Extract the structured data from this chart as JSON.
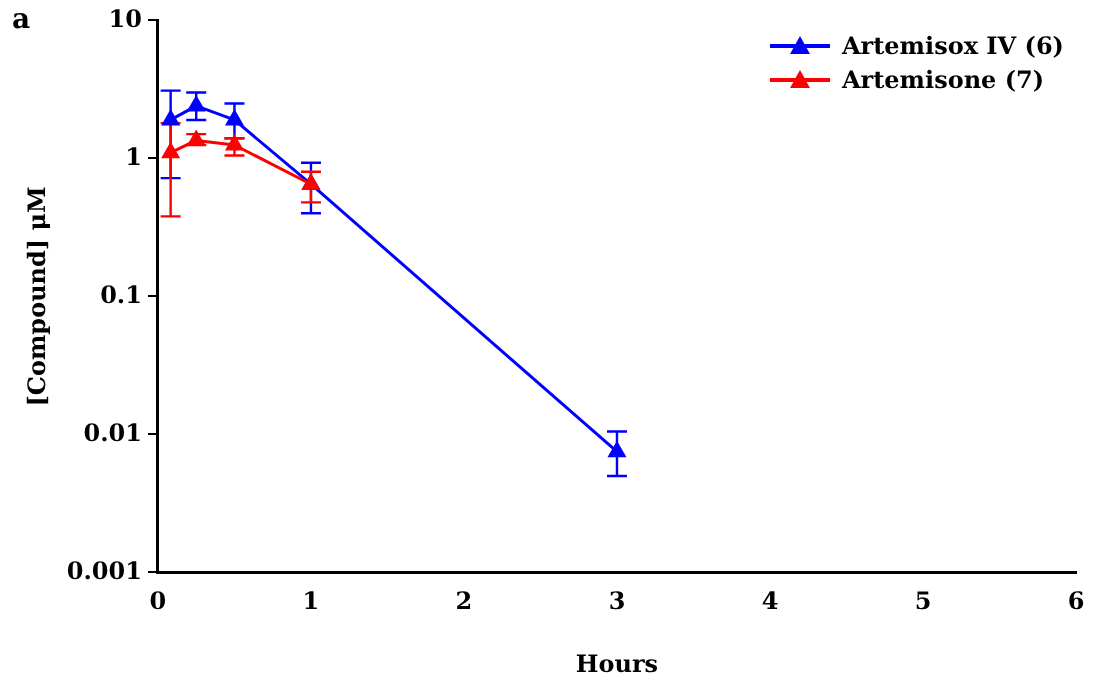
{
  "chart_data": {
    "type": "line",
    "xlabel": "Hours",
    "ylabel": "[Compound] μM",
    "annotations": [
      "a"
    ],
    "log": "y",
    "grid": false,
    "legend": "top right",
    "marker": "triangle",
    "line_style": "solid",
    "xlim": [
      0,
      6
    ],
    "xticks": [
      0,
      1,
      2,
      3,
      4,
      5,
      6
    ],
    "ylim": [
      0.001,
      10
    ],
    "yticks": [
      0.001,
      0.01,
      0.1,
      1,
      10
    ],
    "series": [
      {
        "name": "Artemisox IV (6)",
        "color": "#0000ff",
        "x": [
          0.083,
          0.25,
          0.5,
          1,
          3
        ],
        "values": [
          1.9,
          2.4,
          1.9,
          0.65,
          0.0075
        ],
        "errors": [
          [
            0.72,
            3.1
          ],
          [
            1.9,
            3.0
          ],
          [
            1.4,
            2.5
          ],
          [
            0.4,
            0.93
          ],
          [
            0.005,
            0.0105
          ]
        ]
      },
      {
        "name": "Artemisone (7)",
        "color": "#ff0000",
        "x": [
          0.083,
          0.25,
          0.5,
          1
        ],
        "values": [
          1.1,
          1.35,
          1.25,
          0.65
        ],
        "errors": [
          [
            0.38,
            1.8
          ],
          [
            1.25,
            1.5
          ],
          [
            1.05,
            1.4
          ],
          [
            0.48,
            0.8
          ]
        ]
      }
    ]
  }
}
